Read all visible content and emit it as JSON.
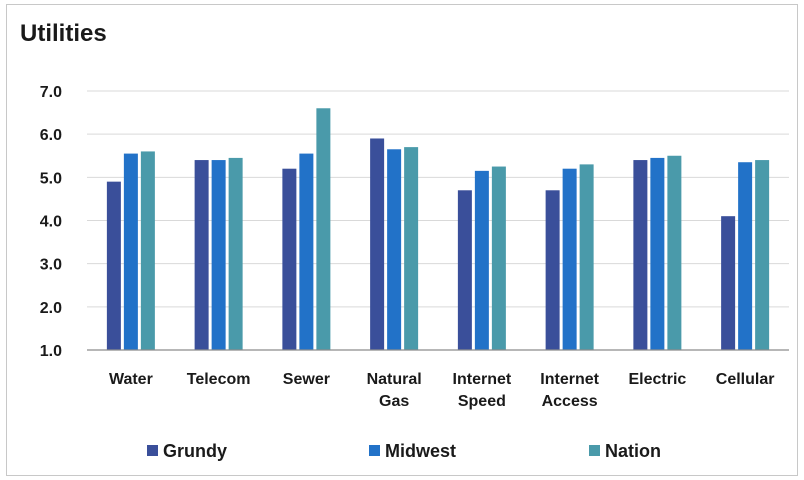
{
  "chart_data": {
    "type": "bar",
    "title": "Utilities",
    "categories": [
      [
        "Water"
      ],
      [
        "Telecom"
      ],
      [
        "Sewer"
      ],
      [
        "Natural",
        "Gas"
      ],
      [
        "Internet",
        "Speed"
      ],
      [
        "Internet",
        "Access"
      ],
      [
        "Electric"
      ],
      [
        "Cellular"
      ]
    ],
    "series": [
      {
        "name": "Grundy",
        "color": "#3a4f9a",
        "values": [
          4.9,
          5.4,
          5.2,
          5.9,
          4.7,
          4.7,
          5.4,
          4.1
        ]
      },
      {
        "name": "Midwest",
        "color": "#2272c8",
        "values": [
          5.55,
          5.4,
          5.55,
          5.65,
          5.15,
          5.2,
          5.45,
          5.35
        ]
      },
      {
        "name": "Nation",
        "color": "#4a9aaa",
        "values": [
          5.6,
          5.45,
          6.6,
          5.7,
          5.25,
          5.3,
          5.5,
          5.4
        ]
      }
    ],
    "ylim": [
      1.0,
      7.0
    ],
    "yticks": [
      "7.0",
      "6.0",
      "5.0",
      "4.0",
      "3.0",
      "2.0",
      "1.0"
    ],
    "ytick_values": [
      7,
      6,
      5,
      4,
      3,
      2,
      1
    ],
    "grid": true,
    "legend": "bottom"
  }
}
